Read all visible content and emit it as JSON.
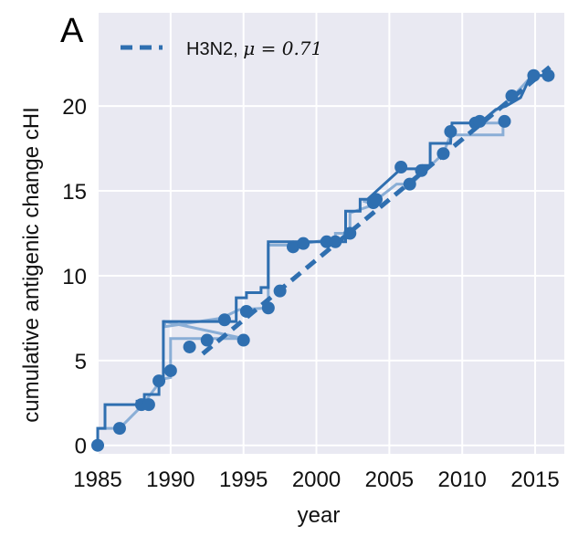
{
  "panel_label": "A",
  "colors": {
    "background": "#e9e9f2",
    "grid": "#ffffff",
    "line": "#2f6fb0",
    "line_light": "#8aaed6"
  },
  "chart_data": {
    "type": "line",
    "title": "",
    "xlabel": "year",
    "ylabel": "cumulative antigenic change cHI",
    "xlim": [
      1985,
      2017
    ],
    "ylim": [
      -0.5,
      25.5
    ],
    "xticks": [
      1985,
      1990,
      1995,
      2000,
      2005,
      2010,
      2015
    ],
    "yticks": [
      0,
      5,
      10,
      15,
      20
    ],
    "grid": true,
    "legend": {
      "placement": "top-left",
      "label": "H3N2, ",
      "mu_symbol": "μ",
      "mu_text": " = 0.71"
    },
    "series": [
      {
        "name": "H3N2, μ = 0.71",
        "kind": "trend",
        "slope": 0.71,
        "x": [
          1992.2,
          2016.0
        ],
        "y": [
          5.4,
          22.3
        ]
      },
      {
        "kind": "step_dark",
        "points": [
          [
            1985.0,
            0.0
          ],
          [
            1985.0,
            1.0
          ],
          [
            1985.5,
            1.0
          ],
          [
            1985.5,
            2.4
          ],
          [
            1987.7,
            2.4
          ],
          [
            1987.7,
            2.6
          ],
          [
            1988.2,
            2.6
          ],
          [
            1988.2,
            3.0
          ],
          [
            1989.2,
            3.0
          ],
          [
            1989.2,
            3.8
          ],
          [
            1989.5,
            3.8
          ],
          [
            1989.5,
            7.3
          ],
          [
            1994.5,
            7.3
          ],
          [
            1994.5,
            8.7
          ],
          [
            1995.2,
            8.7
          ],
          [
            1995.2,
            9.0
          ],
          [
            1996.2,
            9.0
          ],
          [
            1996.2,
            9.3
          ],
          [
            1996.7,
            9.3
          ],
          [
            1996.7,
            12.0
          ],
          [
            2002.0,
            12.0
          ],
          [
            2002.0,
            13.8
          ],
          [
            2003.0,
            13.8
          ],
          [
            2003.0,
            14.5
          ],
          [
            2003.5,
            14.5
          ],
          [
            2003.5,
            14.5
          ],
          [
            2005.8,
            16.3
          ],
          [
            2007.2,
            16.3
          ],
          [
            2007.3,
            16.5
          ],
          [
            2007.8,
            16.5
          ],
          [
            2007.8,
            17.8
          ],
          [
            2009.2,
            17.8
          ],
          [
            2009.3,
            19.0
          ],
          [
            2011.2,
            19.0
          ],
          [
            2012.3,
            19.8
          ],
          [
            2013.0,
            20.0
          ],
          [
            2014.0,
            20.5
          ],
          [
            2014.7,
            21.8
          ],
          [
            2016.0,
            21.8
          ]
        ]
      },
      {
        "kind": "step_light",
        "points": [
          [
            1985.0,
            0.0
          ],
          [
            1985.0,
            1.0
          ],
          [
            1986.5,
            1.0
          ],
          [
            1988.0,
            2.3
          ],
          [
            1989.4,
            3.9
          ],
          [
            1990.0,
            4.0
          ],
          [
            1990.0,
            6.3
          ],
          [
            1995.0,
            6.3
          ],
          [
            1989.6,
            7.3
          ],
          [
            1989.6,
            7.0
          ],
          [
            1993.5,
            7.5
          ],
          [
            1994.7,
            8.0
          ],
          [
            1996.7,
            8.1
          ],
          [
            1996.7,
            11.8
          ],
          [
            1998.5,
            11.8
          ],
          [
            2001.3,
            12.2
          ],
          [
            2001.3,
            12.5
          ],
          [
            2002.3,
            12.5
          ],
          [
            2002.3,
            13.7
          ],
          [
            2004.0,
            14.2
          ],
          [
            2003.2,
            14.4
          ],
          [
            2004.0,
            14.4
          ],
          [
            2005.5,
            15.4
          ],
          [
            2006.5,
            15.4
          ],
          [
            2008.7,
            17.2
          ],
          [
            2009.2,
            18.3
          ],
          [
            2012.8,
            18.3
          ],
          [
            2012.8,
            19.0
          ],
          [
            2011.2,
            19.0
          ],
          [
            2013.4,
            20.5
          ],
          [
            2014.8,
            21.8
          ],
          [
            2015.9,
            21.8
          ]
        ]
      },
      {
        "kind": "scatter",
        "x": [
          1985.0,
          1986.5,
          1988.0,
          1988.5,
          1989.2,
          1990.0,
          1991.3,
          1992.5,
          1993.7,
          1995.0,
          1995.2,
          1996.7,
          1997.5,
          1998.4,
          1999.1,
          2000.7,
          2001.3,
          2002.3,
          2003.9,
          2004.1,
          2005.8,
          2006.4,
          2007.2,
          2008.7,
          2009.2,
          2010.9,
          2011.2,
          2012.9,
          2013.4,
          2014.9,
          2015.9
        ],
        "y": [
          0.0,
          1.0,
          2.4,
          2.4,
          3.8,
          4.4,
          5.8,
          6.2,
          7.4,
          6.2,
          7.9,
          8.1,
          9.1,
          11.7,
          11.9,
          12.0,
          12.0,
          12.5,
          14.3,
          14.5,
          16.4,
          15.4,
          16.2,
          17.2,
          18.5,
          19.0,
          19.1,
          19.1,
          20.6,
          21.8,
          21.8
        ]
      }
    ]
  }
}
